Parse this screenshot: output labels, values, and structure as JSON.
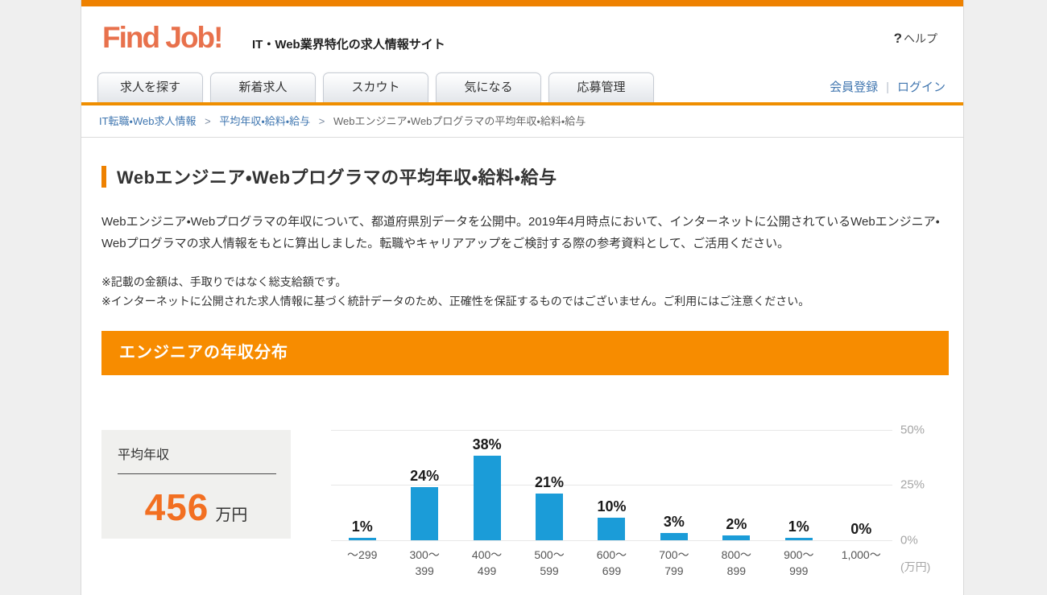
{
  "header": {
    "logo": "Find Job!",
    "tagline": "IT・Web業界特化の求人情報サイト",
    "help_icon": "?",
    "help_label": "ヘルプ"
  },
  "nav": {
    "tabs": [
      "求人を探す",
      "新着求人",
      "スカウト",
      "気になる",
      "応募管理"
    ],
    "register_label": "会員登録",
    "login_label": "ログイン",
    "divider": "|"
  },
  "breadcrumb": {
    "separator": ">",
    "items": [
      "IT転職・Web求人情報",
      "平均年収・給料・給与",
      "Webエンジニア・Webプログラマの平均年収・給料・給与"
    ]
  },
  "page": {
    "title": "Webエンジニア・Webプログラマの平均年収・給料・給与",
    "intro": "Webエンジニア・Webプログラマの年収について、都道府県別データを公開中。2019年4月時点において、インターネットに公開されているWebエンジニア・Webプログラマの求人情報をもとに算出しました。転職やキャリアアップをご検討する際の参考資料として、ご活用ください。",
    "notes": [
      "※記載の金額は、手取りではなく総支給額です。",
      "※インターネットに公開された求人情報に基づく統計データのため、正確性を保証するものではございません。ご利用にはご注意ください。"
    ]
  },
  "section": {
    "title": "エンジニアの年収分布"
  },
  "average": {
    "label": "平均年収",
    "value": "456",
    "unit": "万円"
  },
  "chart_data": {
    "type": "bar",
    "title": "エンジニアの年収分布",
    "categories": [
      "～299",
      "300～399",
      "400～499",
      "500～599",
      "600～699",
      "700～799",
      "800～899",
      "900～999",
      "1,000～"
    ],
    "categories_lines": [
      [
        "～299"
      ],
      [
        "300～",
        "399"
      ],
      [
        "400～",
        "499"
      ],
      [
        "500～",
        "599"
      ],
      [
        "600～",
        "699"
      ],
      [
        "700～",
        "799"
      ],
      [
        "800～",
        "899"
      ],
      [
        "900～",
        "999"
      ],
      [
        "1,000～"
      ]
    ],
    "values": [
      1,
      24,
      38,
      21,
      10,
      3,
      2,
      1,
      0
    ],
    "value_labels": [
      "1%",
      "24%",
      "38%",
      "21%",
      "10%",
      "3%",
      "2%",
      "1%",
      "0%"
    ],
    "xlabel": "",
    "ylabel": "",
    "x_unit": "(万円)",
    "ylim": [
      0,
      50
    ],
    "yticks": [
      "0%",
      "25%",
      "50%"
    ],
    "grid": true,
    "legend_position": "none",
    "bar_color": "#1b9cd8"
  },
  "colors": {
    "topbar": "#ee8100",
    "section_header": "#f78c00",
    "bar": "#1b9cd8",
    "average_value": "#f26f21",
    "link": "#4277b0",
    "logo": "#e8714c"
  }
}
